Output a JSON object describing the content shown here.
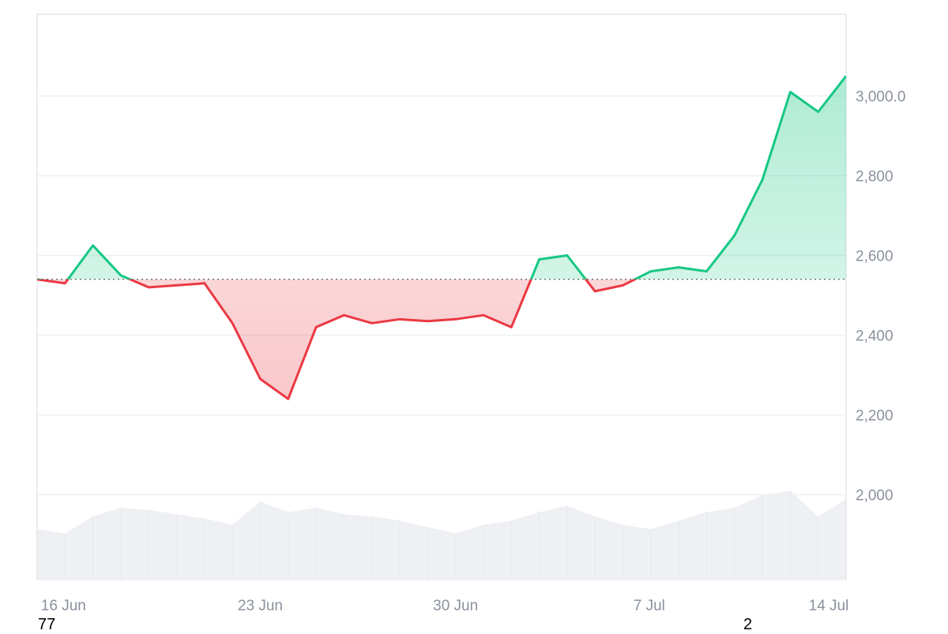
{
  "chart_data": {
    "type": "line",
    "title": "",
    "xlabel": "",
    "ylabel": "",
    "x_ticks": [
      {
        "label": "16 Jun",
        "day": 16
      },
      {
        "label": "23 Jun",
        "day": 23
      },
      {
        "label": "30 Jun",
        "day": 30
      },
      {
        "label": "7 Jul",
        "day": 37
      },
      {
        "label": "14 Jul",
        "day": 44
      }
    ],
    "xlim": [
      "2024-06-15",
      "2024-07-14"
    ],
    "y_ticks": [
      {
        "label": "2,000",
        "value": 2000
      },
      {
        "label": "2,200",
        "value": 2200
      },
      {
        "label": "2,400",
        "value": 2400
      },
      {
        "label": "2,600",
        "value": 2600
      },
      {
        "label": "2,800",
        "value": 2800
      },
      {
        "label": "3,000.0",
        "value": 3000
      }
    ],
    "ylim": [
      1785,
      3205
    ],
    "baseline": 2540,
    "grid": true,
    "colors": {
      "up": "#16c784",
      "down": "#ea3943",
      "volume": "#eef0f3",
      "grid": "#eef0f3",
      "axis": "#e3e6ea"
    },
    "series": [
      {
        "x": [
          "2024-06-15",
          "2024-06-16",
          "2024-06-17",
          "2024-06-18",
          "2024-06-19",
          "2024-06-20",
          "2024-06-21",
          "2024-06-22",
          "2024-06-23",
          "2024-06-24",
          "2024-06-25",
          "2024-06-26",
          "2024-06-27",
          "2024-06-28",
          "2024-06-29",
          "2024-06-30",
          "2024-07-01",
          "2024-07-02",
          "2024-07-03",
          "2024-07-04",
          "2024-07-05",
          "2024-07-06",
          "2024-07-07",
          "2024-07-08",
          "2024-07-09",
          "2024-07-10",
          "2024-07-11",
          "2024-07-12",
          "2024-07-13",
          "2024-07-14"
        ],
        "values": [
          2540,
          2530,
          2625,
          2550,
          2520,
          2525,
          2530,
          2430,
          2290,
          2240,
          2420,
          2450,
          2430,
          2440,
          2435,
          2440,
          2450,
          2420,
          2590,
          2600,
          2510,
          2525,
          2560,
          2570,
          2560,
          2650,
          2790,
          3010,
          2960,
          3050
        ]
      }
    ],
    "volume": {
      "values": [
        120,
        110,
        150,
        170,
        165,
        155,
        145,
        130,
        185,
        160,
        170,
        155,
        150,
        140,
        125,
        110,
        130,
        140,
        160,
        175,
        150,
        130,
        120,
        140,
        160,
        170,
        200,
        210,
        150,
        190
      ],
      "max": 250
    },
    "footer": {
      "left_value": "77",
      "right_value": "2"
    }
  }
}
